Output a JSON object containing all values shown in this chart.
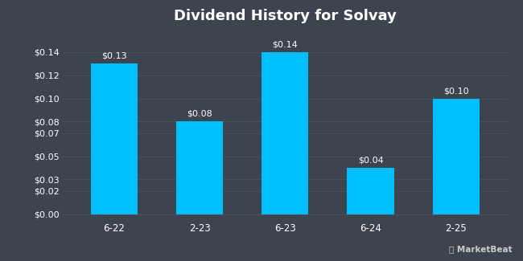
{
  "title": "Dividend History for Solvay",
  "categories": [
    "6-22",
    "2-23",
    "6-23",
    "6-24",
    "2-25"
  ],
  "values": [
    0.13,
    0.08,
    0.14,
    0.04,
    0.1
  ],
  "labels": [
    "$0.13",
    "$0.08",
    "$0.14",
    "$0.04",
    "$0.10"
  ],
  "bar_color": "#00BFFF",
  "background_color": "#3d4450",
  "plot_bg_color": "#3d4450",
  "grid_color": "#4a5260",
  "text_color": "#ffffff",
  "title_fontsize": 13,
  "tick_fontsize": 8,
  "label_fontsize": 8,
  "ylim": [
    0,
    0.158
  ],
  "yticks": [
    0.0,
    0.02,
    0.03,
    0.05,
    0.07,
    0.08,
    0.1,
    0.12,
    0.14
  ],
  "watermark": "MarketBeat"
}
